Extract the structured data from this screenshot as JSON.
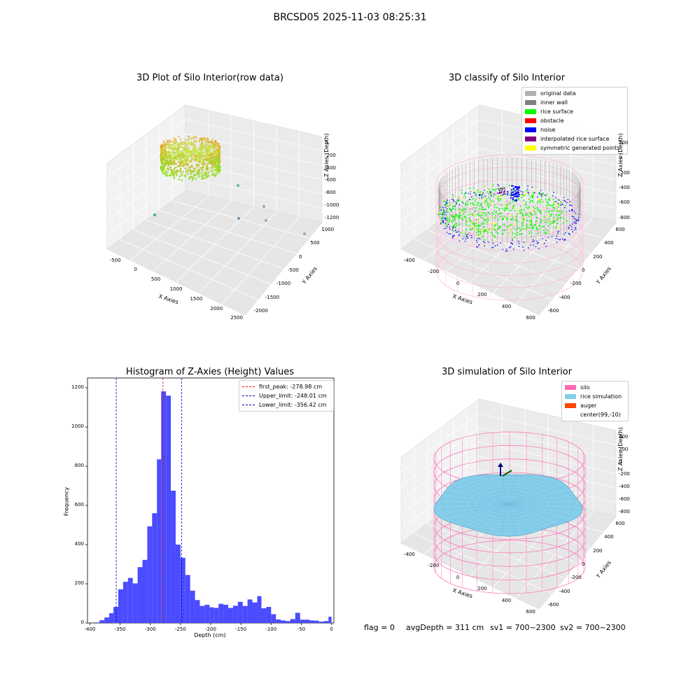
{
  "figure": {
    "suptitle": "BRCSD05 2025-11-03 08:25:31",
    "footer": {
      "flag": "flag = 0",
      "avg_depth": "avgDepth = 311 cm",
      "sv1": "sv1 = 700~2300",
      "sv2": "sv2 = 700~2300"
    }
  },
  "colors": {
    "histogram_bar": "#4b4bff",
    "first_peak": "#ff0000",
    "limits": "#0000cc",
    "silo": "#ff69b4",
    "rice_simulation": "#87ceeb",
    "auger": "#ff4500",
    "original_data": "#b0b0b0",
    "inner_wall": "#808080",
    "rice_surface": "#00ff00",
    "obstacle": "#ff0000",
    "noise": "#0000ff",
    "interpolated_rice_surface": "#800080",
    "symmetric_generated_points": "#ffff00"
  },
  "chart_data": [
    {
      "type": "scatter",
      "projection": "3d",
      "title": "3D Plot of Silo Interior(row data)",
      "xlabel": "X Axies",
      "ylabel": "Y Axies",
      "zlabel": "Z Axies (Depth)",
      "xticks": [
        "-500",
        "0",
        "500",
        "1000",
        "1500",
        "2000",
        "2500"
      ],
      "yticks": [
        "1000",
        "500",
        "0",
        "-500",
        "-1000",
        "-1500",
        "-2000"
      ],
      "zticks": [
        "0",
        "-200",
        "-400",
        "-600",
        "-800",
        "-1000",
        "-1200"
      ],
      "outliers": 6
    },
    {
      "type": "scatter",
      "projection": "3d",
      "title": "3D classify of Silo Interior",
      "xlabel": "X Axies",
      "ylabel": "Y Axies",
      "zlabel": "Z Axies (Depth)",
      "xticks": [
        "-400",
        "-200",
        "0",
        "200",
        "400",
        "600"
      ],
      "yticks": [
        "600",
        "400",
        "200",
        "0",
        "-200",
        "-400",
        "-600"
      ],
      "zticks": [
        "200",
        "0",
        "-200",
        "-400",
        "-600",
        "-800"
      ],
      "legend": [
        "original data",
        "inner wall",
        "rice surface",
        "obstacle",
        "noise",
        "interpolated rice surface",
        "symmetric generated points"
      ],
      "legend_position": "top-right"
    },
    {
      "type": "bar",
      "title": "Histogram of Z-Axies (Height) Values",
      "xlabel": "Depth (cm)",
      "ylabel": "Frequency",
      "xlim": [
        -404,
        4
      ],
      "ylim": [
        0,
        1250
      ],
      "xticks": [
        "-400",
        "-350",
        "-300",
        "-250",
        "-200",
        "-150",
        "-100",
        "-50",
        "0"
      ],
      "yticks": [
        "0",
        "200",
        "400",
        "600",
        "800",
        "1000",
        "1200"
      ],
      "bins": [
        {
          "x0": -400,
          "x1": -392,
          "count": 0
        },
        {
          "x0": -392,
          "x1": -384,
          "count": 3
        },
        {
          "x0": -384,
          "x1": -376,
          "count": 14
        },
        {
          "x0": -376,
          "x1": -368,
          "count": 28
        },
        {
          "x0": -368,
          "x1": -361,
          "count": 50
        },
        {
          "x0": -361,
          "x1": -353,
          "count": 82
        },
        {
          "x0": -353,
          "x1": -345,
          "count": 172
        },
        {
          "x0": -345,
          "x1": -337,
          "count": 210
        },
        {
          "x0": -337,
          "x1": -329,
          "count": 230
        },
        {
          "x0": -329,
          "x1": -321,
          "count": 202
        },
        {
          "x0": -321,
          "x1": -313,
          "count": 285
        },
        {
          "x0": -313,
          "x1": -305,
          "count": 322
        },
        {
          "x0": -305,
          "x1": -297,
          "count": 493
        },
        {
          "x0": -297,
          "x1": -289,
          "count": 560
        },
        {
          "x0": -289,
          "x1": -282,
          "count": 835
        },
        {
          "x0": -282,
          "x1": -274,
          "count": 1182
        },
        {
          "x0": -274,
          "x1": -266,
          "count": 1160
        },
        {
          "x0": -266,
          "x1": -258,
          "count": 675
        },
        {
          "x0": -258,
          "x1": -250,
          "count": 400
        },
        {
          "x0": -250,
          "x1": -242,
          "count": 333
        },
        {
          "x0": -242,
          "x1": -234,
          "count": 245
        },
        {
          "x0": -234,
          "x1": -226,
          "count": 165
        },
        {
          "x0": -226,
          "x1": -218,
          "count": 117
        },
        {
          "x0": -218,
          "x1": -210,
          "count": 87
        },
        {
          "x0": -210,
          "x1": -202,
          "count": 93
        },
        {
          "x0": -202,
          "x1": -195,
          "count": 80
        },
        {
          "x0": -195,
          "x1": -187,
          "count": 77
        },
        {
          "x0": -187,
          "x1": -179,
          "count": 98
        },
        {
          "x0": -179,
          "x1": -171,
          "count": 93
        },
        {
          "x0": -171,
          "x1": -163,
          "count": 77
        },
        {
          "x0": -163,
          "x1": -155,
          "count": 88
        },
        {
          "x0": -155,
          "x1": -147,
          "count": 108
        },
        {
          "x0": -147,
          "x1": -139,
          "count": 87
        },
        {
          "x0": -139,
          "x1": -131,
          "count": 120
        },
        {
          "x0": -131,
          "x1": -123,
          "count": 105
        },
        {
          "x0": -123,
          "x1": -116,
          "count": 137
        },
        {
          "x0": -116,
          "x1": -108,
          "count": 75
        },
        {
          "x0": -108,
          "x1": -100,
          "count": 82
        },
        {
          "x0": -100,
          "x1": -92,
          "count": 45
        },
        {
          "x0": -92,
          "x1": -84,
          "count": 18
        },
        {
          "x0": -84,
          "x1": -76,
          "count": 13
        },
        {
          "x0": -76,
          "x1": -68,
          "count": 10
        },
        {
          "x0": -68,
          "x1": -60,
          "count": 20
        },
        {
          "x0": -60,
          "x1": -52,
          "count": 52
        },
        {
          "x0": -52,
          "x1": -44,
          "count": 17
        },
        {
          "x0": -44,
          "x1": -36,
          "count": 17
        },
        {
          "x0": -36,
          "x1": -29,
          "count": 13
        },
        {
          "x0": -29,
          "x1": -21,
          "count": 12
        },
        {
          "x0": -21,
          "x1": -13,
          "count": 7
        },
        {
          "x0": -13,
          "x1": -5,
          "count": 10
        },
        {
          "x0": -5,
          "x1": 0,
          "count": 32
        }
      ],
      "vlines": [
        {
          "label": "first_peak: -278.98 cm",
          "x": -278.98,
          "color": "#ff0000"
        },
        {
          "label": "Upper_limit: -248.01 cm",
          "x": -248.01,
          "color": "#0000cc"
        },
        {
          "label": "Lower_limit: -356.42 cm",
          "x": -356.42,
          "color": "#0000cc"
        }
      ],
      "legend_position": "top-right"
    },
    {
      "type": "surface",
      "projection": "3d",
      "title": "3D simulation of Silo Interior",
      "xlabel": "X Axies",
      "ylabel": "Y Axies",
      "zlabel": "Z Axies (Depth)",
      "xticks": [
        "-400",
        "-200",
        "0",
        "200",
        "400",
        "600"
      ],
      "yticks": [
        "600",
        "400",
        "200",
        "0",
        "-200",
        "-400",
        "-600"
      ],
      "zticks": [
        "400",
        "200",
        "0",
        "-200",
        "-400",
        "-600",
        "-800"
      ],
      "legend": [
        "silo",
        "rice simulation",
        "auger",
        "center(99,-10)"
      ],
      "legend_position": "top-right"
    }
  ]
}
